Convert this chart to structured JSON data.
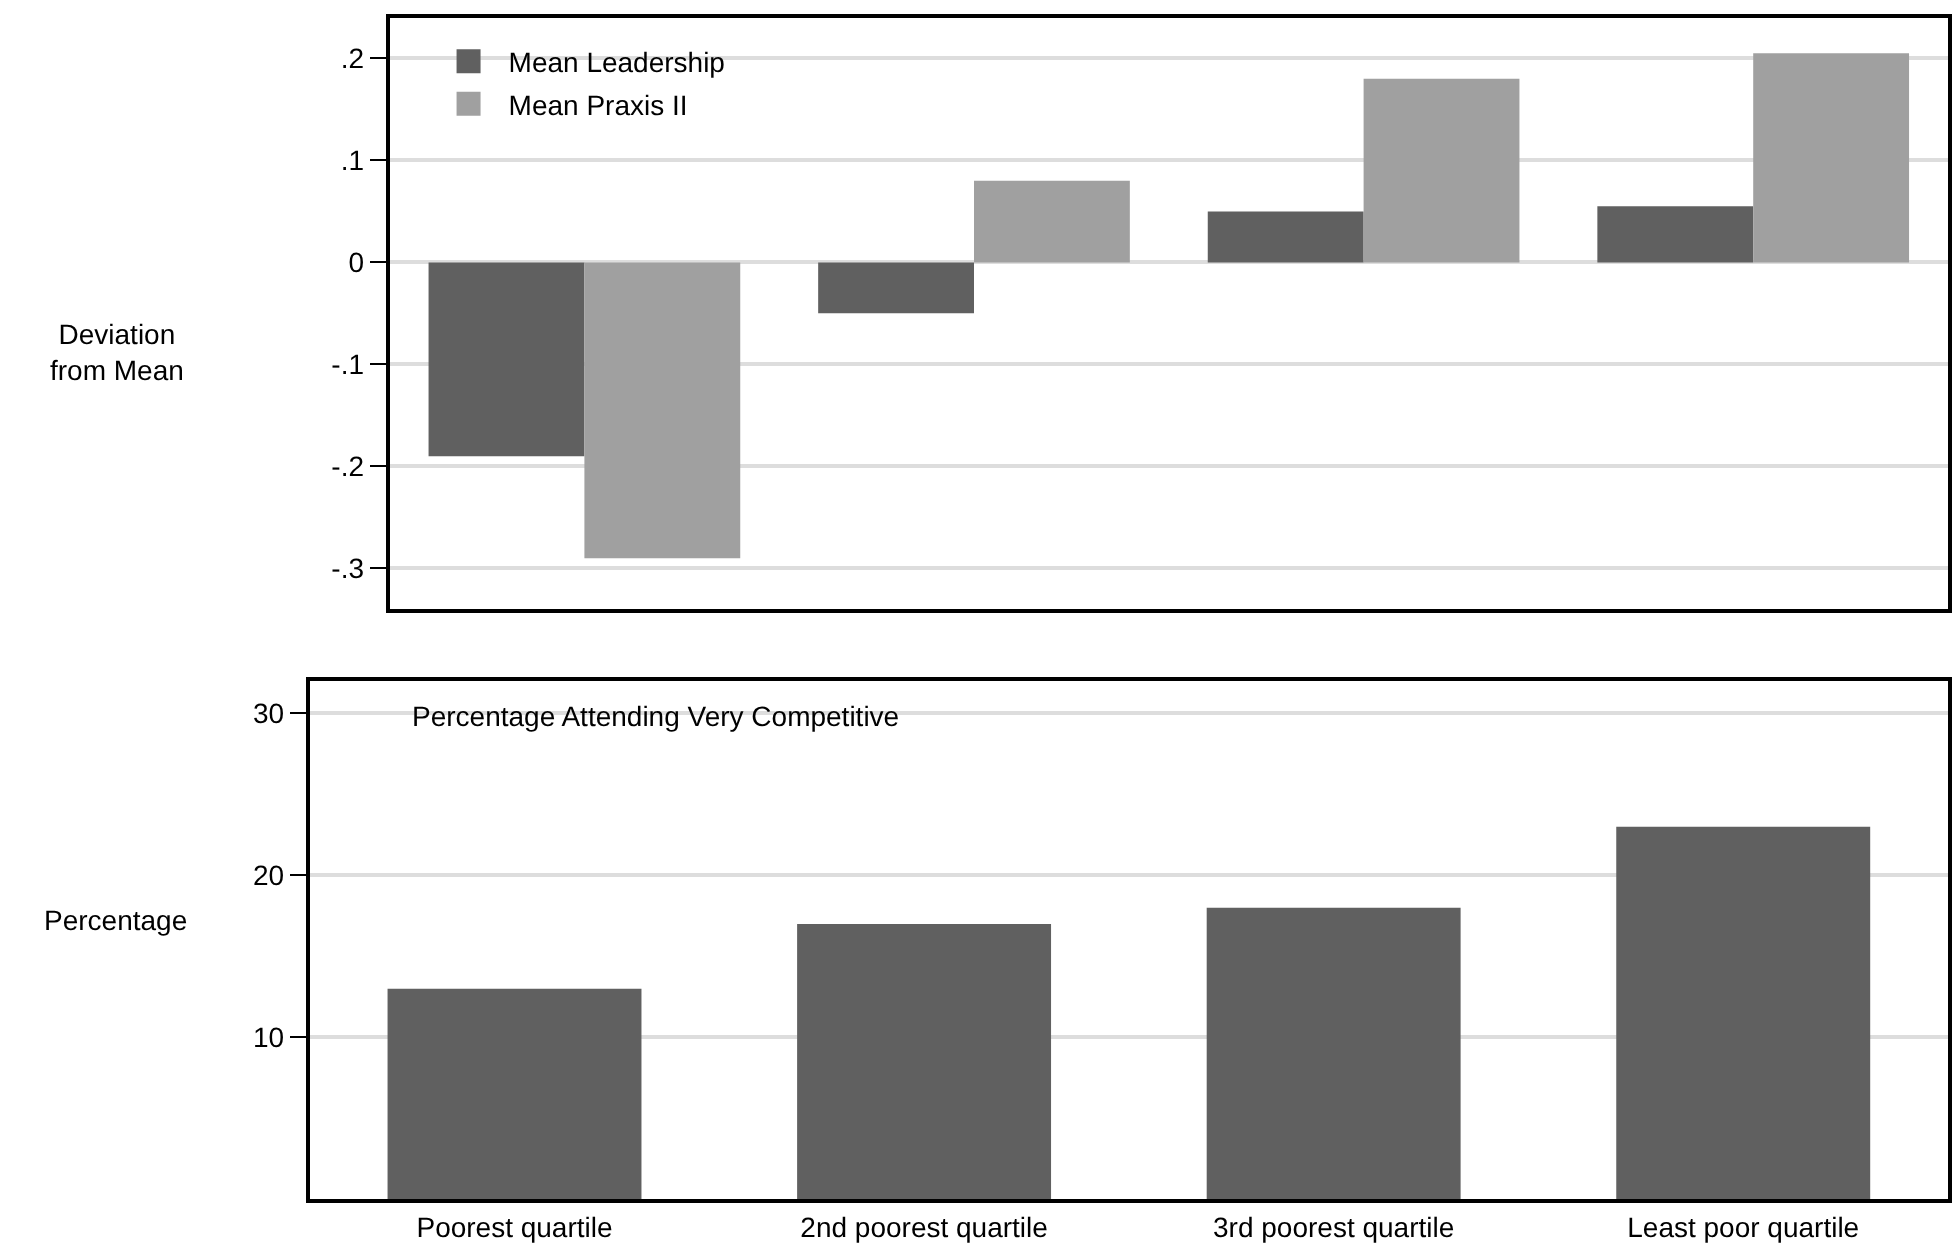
{
  "chart_data": [
    {
      "type": "bar",
      "ylabel": "Deviation from Mean",
      "categories": [
        "Poorest quartile",
        "2nd poorest quartile",
        "3rd poorest quartile",
        "Least poor quartile"
      ],
      "series": [
        {
          "name": "Mean Leadership",
          "color": "#606060",
          "values": [
            -0.19,
            -0.05,
            0.05,
            0.055
          ]
        },
        {
          "name": "Mean Praxis II",
          "color": "#a0a0a0",
          "values": [
            -0.29,
            0.08,
            0.18,
            0.205
          ]
        }
      ],
      "ylim": [
        -0.34,
        0.24
      ],
      "yticks": [
        {
          "value": -0.3,
          "label": "-.3"
        },
        {
          "value": -0.2,
          "label": "-.2"
        },
        {
          "value": -0.1,
          "label": "-.1"
        },
        0,
        {
          "value": 0.1,
          "label": ".1"
        },
        {
          "value": 0.2,
          "label": ".2"
        }
      ],
      "grid": "y",
      "legend": "top left",
      "tick_labels": "y"
    },
    {
      "type": "bar",
      "title": "Percentage Attending Very Competitive",
      "ylabel": "Percentage",
      "categories": [
        "Poorest quartile",
        "2nd poorest quartile",
        "3rd poorest quartile",
        "Least poor quartile"
      ],
      "values": [
        13,
        17,
        18,
        23
      ],
      "color": "#606060",
      "ylim": [
        0,
        32
      ],
      "yticks": [
        10,
        20,
        30
      ],
      "grid": "y"
    }
  ]
}
